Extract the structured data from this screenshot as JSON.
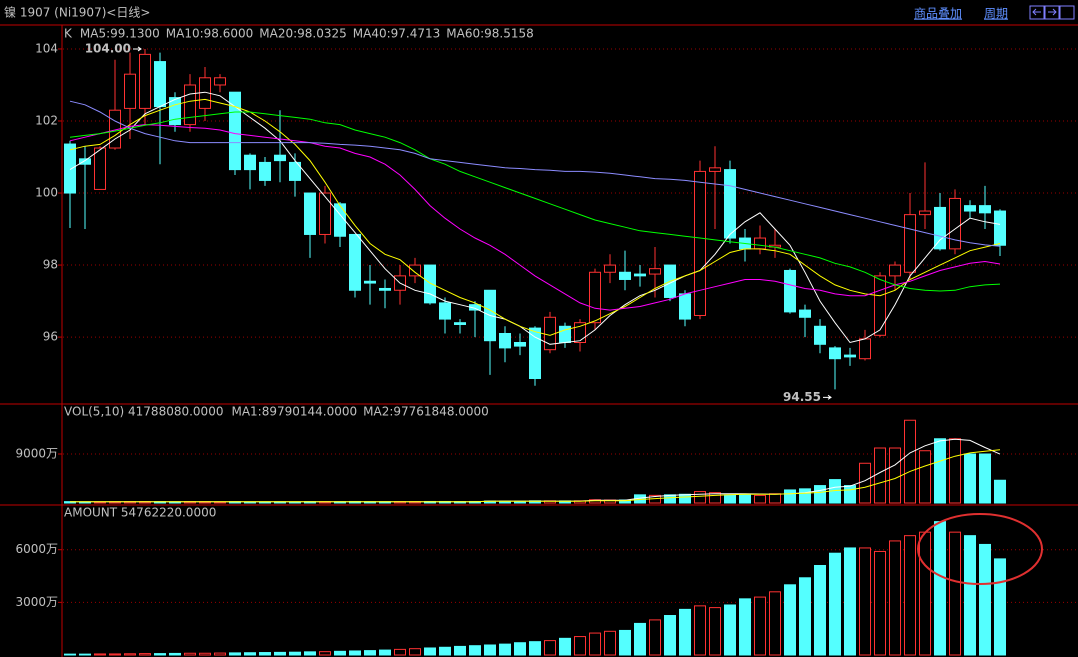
{
  "header": {
    "title": "镍  1907 (Ni1907)<日线>",
    "links": [
      "商品叠加",
      "周期"
    ]
  },
  "chart_data": [
    {
      "type": "candlestick",
      "title": "K",
      "open": [
        101.36,
        100.95,
        100.1,
        101.25,
        102.35,
        102.35,
        103.65,
        102.65,
        101.9,
        102.35,
        103.0,
        102.8,
        101.05,
        100.85,
        101.05,
        100.85,
        100.0,
        98.85,
        99.7,
        98.85,
        97.55,
        97.35,
        97.3,
        97.7,
        98.0,
        96.95,
        96.4,
        96.9,
        97.3,
        96.1,
        95.85,
        96.25,
        95.65,
        96.3,
        95.85,
        96.4,
        97.8,
        97.8,
        97.75,
        97.75,
        98.0,
        97.2,
        96.6,
        100.6,
        100.65,
        98.75,
        98.45,
        98.5,
        97.85,
        96.75,
        96.3,
        95.7,
        95.5,
        95.4,
        96.05,
        97.7,
        97.8,
        99.4,
        99.6,
        98.45,
        99.65,
        99.65,
        99.5
      ],
      "high": [
        101.45,
        101.3,
        101.3,
        103.7,
        103.9,
        104.0,
        103.9,
        102.8,
        103.3,
        103.5,
        103.3,
        102.8,
        101.1,
        101.0,
        102.3,
        101.1,
        100.0,
        100.2,
        99.75,
        98.85,
        98.0,
        97.6,
        98.0,
        98.2,
        98.0,
        97.1,
        96.5,
        97.0,
        97.3,
        96.3,
        96.1,
        96.3,
        96.7,
        96.4,
        96.5,
        97.9,
        98.3,
        98.4,
        98.0,
        98.5,
        98.0,
        97.3,
        100.9,
        101.3,
        100.9,
        99.0,
        99.1,
        99.0,
        97.9,
        96.9,
        96.5,
        95.75,
        95.7,
        96.2,
        97.8,
        98.1,
        100.0,
        100.85,
        100.0,
        100.1,
        99.8,
        100.2,
        99.55
      ],
      "low": [
        99.03,
        99.0,
        100.1,
        101.2,
        101.5,
        101.9,
        100.8,
        101.7,
        101.7,
        102.0,
        102.8,
        100.5,
        100.1,
        100.2,
        100.3,
        99.9,
        98.2,
        98.6,
        98.5,
        97.1,
        96.9,
        96.8,
        96.9,
        97.5,
        96.9,
        96.1,
        96.1,
        96.0,
        94.95,
        95.3,
        95.5,
        94.65,
        95.55,
        95.7,
        95.6,
        96.2,
        97.5,
        97.3,
        97.4,
        97.1,
        97.0,
        96.3,
        96.5,
        99.0,
        98.6,
        98.1,
        98.3,
        98.2,
        96.65,
        96.0,
        95.55,
        94.55,
        95.2,
        95.35,
        96.0,
        97.3,
        97.6,
        99.0,
        98.4,
        98.3,
        99.3,
        99.0,
        98.25
      ],
      "close": [
        100.0,
        100.8,
        101.25,
        102.3,
        103.3,
        103.85,
        102.4,
        101.9,
        103.0,
        103.2,
        103.2,
        100.65,
        100.65,
        100.35,
        100.9,
        100.35,
        98.85,
        100.0,
        98.8,
        97.3,
        97.5,
        97.3,
        97.7,
        98.0,
        96.95,
        96.5,
        96.35,
        96.75,
        95.9,
        95.7,
        95.75,
        94.85,
        96.55,
        95.85,
        96.4,
        97.8,
        98.0,
        97.6,
        97.7,
        97.9,
        97.1,
        96.5,
        100.6,
        100.7,
        98.75,
        98.45,
        98.75,
        98.55,
        96.7,
        96.55,
        95.8,
        95.4,
        95.45,
        95.95,
        97.7,
        98.0,
        99.4,
        99.5,
        98.45,
        99.85,
        99.5,
        99.45,
        98.55
      ],
      "up_color": "#ff3232",
      "down_color": "#54ffff",
      "series": [
        {
          "name": "MA5:99.1300",
          "color": "#ffffff",
          "values": [
            100.65,
            100.9,
            101.2,
            101.5,
            101.75,
            102.2,
            102.4,
            102.6,
            102.75,
            102.8,
            102.7,
            102.4,
            102.1,
            101.8,
            101.45,
            100.9,
            100.4,
            99.9,
            99.4,
            98.9,
            98.4,
            97.9,
            97.5,
            97.3,
            97.2,
            97.0,
            96.9,
            96.8,
            96.6,
            96.5,
            96.3,
            96.0,
            95.8,
            95.85,
            95.9,
            96.2,
            96.6,
            96.9,
            97.15,
            97.3,
            97.5,
            97.7,
            97.85,
            98.3,
            98.85,
            99.2,
            99.45,
            99.0,
            98.55,
            97.8,
            97.0,
            96.4,
            95.85,
            95.95,
            96.2,
            96.9,
            97.7,
            98.2,
            98.7,
            99.0,
            99.3,
            99.2,
            99.13
          ]
        },
        {
          "name": "MA10:98.6000",
          "color": "#ffff00",
          "values": [
            101.2,
            101.3,
            101.35,
            101.6,
            101.9,
            102.15,
            102.3,
            102.45,
            102.55,
            102.6,
            102.5,
            102.4,
            102.25,
            102.0,
            101.7,
            101.35,
            100.9,
            100.3,
            99.65,
            99.1,
            98.6,
            98.3,
            98.15,
            97.8,
            97.5,
            97.3,
            97.1,
            96.95,
            96.75,
            96.5,
            96.3,
            96.15,
            96.05,
            96.2,
            96.3,
            96.45,
            96.65,
            96.85,
            97.1,
            97.35,
            97.55,
            97.7,
            97.85,
            98.1,
            98.35,
            98.45,
            98.45,
            98.4,
            98.3,
            98.0,
            97.7,
            97.45,
            97.3,
            97.2,
            97.15,
            97.3,
            97.6,
            97.8,
            98.0,
            98.2,
            98.4,
            98.5,
            98.6
          ]
        },
        {
          "name": "MA20:98.0325",
          "color": "#ff00ff",
          "values": [
            101.45,
            101.55,
            101.65,
            101.75,
            101.85,
            101.9,
            101.88,
            101.85,
            101.82,
            101.8,
            101.75,
            101.65,
            101.6,
            101.55,
            101.5,
            101.45,
            101.4,
            101.3,
            101.25,
            101.1,
            101.0,
            100.8,
            100.5,
            100.1,
            99.65,
            99.3,
            99.0,
            98.75,
            98.55,
            98.3,
            98.0,
            97.7,
            97.45,
            97.2,
            96.95,
            96.8,
            96.75,
            96.8,
            96.85,
            96.95,
            97.05,
            97.2,
            97.3,
            97.4,
            97.5,
            97.6,
            97.6,
            97.55,
            97.45,
            97.35,
            97.3,
            97.2,
            97.15,
            97.15,
            97.3,
            97.45,
            97.55,
            97.7,
            97.85,
            97.95,
            98.05,
            98.1,
            98.03
          ]
        },
        {
          "name": "MA40:97.4713",
          "color": "#00ff00",
          "values": [
            101.55,
            101.6,
            101.65,
            101.72,
            101.8,
            101.88,
            101.95,
            102.05,
            102.1,
            102.15,
            102.2,
            102.25,
            102.25,
            102.2,
            102.15,
            102.1,
            102.05,
            101.95,
            101.9,
            101.75,
            101.65,
            101.55,
            101.4,
            101.2,
            100.95,
            100.8,
            100.6,
            100.45,
            100.3,
            100.15,
            100.0,
            99.85,
            99.7,
            99.55,
            99.4,
            99.25,
            99.15,
            99.05,
            98.95,
            98.9,
            98.85,
            98.8,
            98.75,
            98.7,
            98.65,
            98.6,
            98.55,
            98.5,
            98.4,
            98.3,
            98.2,
            98.05,
            97.95,
            97.8,
            97.6,
            97.45,
            97.35,
            97.3,
            97.28,
            97.3,
            97.4,
            97.45,
            97.47
          ]
        },
        {
          "name": "MA60:98.5158",
          "color": "#8c8cff",
          "values": [
            102.55,
            102.45,
            102.25,
            102.0,
            101.8,
            101.65,
            101.55,
            101.45,
            101.4,
            101.4,
            101.4,
            101.4,
            101.4,
            101.4,
            101.4,
            101.4,
            101.4,
            101.38,
            101.35,
            101.33,
            101.3,
            101.25,
            101.2,
            101.1,
            100.95,
            100.9,
            100.85,
            100.8,
            100.75,
            100.7,
            100.68,
            100.65,
            100.63,
            100.6,
            100.6,
            100.58,
            100.55,
            100.5,
            100.45,
            100.4,
            100.38,
            100.35,
            100.3,
            100.25,
            100.2,
            100.1,
            100.0,
            99.9,
            99.8,
            99.7,
            99.6,
            99.5,
            99.4,
            99.3,
            99.2,
            99.1,
            99.0,
            98.9,
            98.8,
            98.7,
            98.62,
            98.56,
            98.52
          ]
        }
      ],
      "high_label": {
        "text": "104.00",
        "value": 104.0
      },
      "low_label": {
        "text": "94.55",
        "value": 94.55
      },
      "ylim": [
        94.17,
        104.61
      ],
      "yticks": [
        96,
        98,
        100,
        102,
        104
      ],
      "grid": true
    },
    {
      "type": "bar",
      "title": "VOL(5,10) 41788080.0000",
      "values": [
        2500000,
        2000000,
        2000000,
        2200000,
        2500000,
        2500000,
        2500000,
        2200000,
        2500000,
        2300000,
        2000000,
        2500000,
        2000000,
        2000000,
        2200000,
        2000000,
        2500000,
        2300000,
        2400000,
        2800000,
        2400000,
        2400000,
        2500000,
        2400000,
        2800000,
        2800000,
        2600000,
        2800000,
        3500000,
        3200000,
        3000000,
        4000000,
        4000000,
        3800000,
        4000000,
        6000000,
        5500000,
        5500000,
        15000000,
        14000000,
        15000000,
        16000000,
        21000000,
        19000000,
        15000000,
        15000000,
        14000000,
        17000000,
        24000000,
        26000000,
        32000000,
        43000000,
        32000000,
        73000000,
        101000000,
        101000000,
        152000000,
        96000000,
        118000000,
        118000000,
        90000000,
        90000000,
        41788080
      ],
      "series": [
        {
          "name": "MA1:89790144.0000",
          "color": "#ffffff",
          "values": [
            2400000,
            2400000,
            2400000,
            2400000,
            2400000,
            2400000,
            2400000,
            2400000,
            2400000,
            2400000,
            2400000,
            2400000,
            2400000,
            2400000,
            2400000,
            2400000,
            2400000,
            2400000,
            2400000,
            2400000,
            2400000,
            2400000,
            2400000,
            2400000,
            2400000,
            2400000,
            2400000,
            2400000,
            3500000,
            3500000,
            3500000,
            3500000,
            3500000,
            3500000,
            3500000,
            5000000,
            5000000,
            5000000,
            9000000,
            12000000,
            14000000,
            15000000,
            16000000,
            17000000,
            17000000,
            17000000,
            16500000,
            16000000,
            17000000,
            19000000,
            23000000,
            29000000,
            31000000,
            41000000,
            56000000,
            70000000,
            92000000,
            105000000,
            114000000,
            117000000,
            115000000,
            102000000,
            89790144
          ]
        },
        {
          "name": "MA2:97761848.0000",
          "color": "#ffff00",
          "values": [
            2400000,
            2400000,
            2400000,
            2400000,
            2400000,
            2400000,
            2400000,
            2400000,
            2400000,
            2400000,
            2400000,
            2400000,
            2400000,
            2400000,
            2400000,
            2400000,
            2400000,
            2400000,
            2400000,
            2400000,
            2400000,
            2400000,
            2400000,
            2400000,
            2400000,
            2400000,
            2400000,
            2400000,
            3300000,
            3300000,
            3300000,
            3300000,
            3300000,
            3300000,
            3300000,
            4300000,
            4300000,
            4300000,
            6500000,
            8000000,
            9500000,
            11000000,
            12500000,
            14000000,
            15000000,
            16000000,
            16000000,
            16000000,
            17000000,
            18000000,
            19500000,
            23000000,
            24000000,
            29000000,
            37000000,
            45000000,
            58000000,
            68000000,
            77000000,
            86000000,
            92000000,
            95000000,
            97761848
          ]
        }
      ],
      "ylim": [
        0,
        180000000
      ],
      "yticks": [
        {
          "value": 90000000,
          "label": "9000万"
        }
      ],
      "grid": true
    },
    {
      "type": "bar",
      "title": "AMOUNT 54762220.0000",
      "values": [
        500000,
        500000,
        600000,
        600000,
        700000,
        800000,
        800000,
        900000,
        1000000,
        1000000,
        1100000,
        1200000,
        1300000,
        1400000,
        1500000,
        1600000,
        1800000,
        1900000,
        2100000,
        2300000,
        2500000,
        2800000,
        3200000,
        3600000,
        4000000,
        4400000,
        4900000,
        5300000,
        5700000,
        6200000,
        7000000,
        7600000,
        8200000,
        9500000,
        10500000,
        12500000,
        13500000,
        14000000,
        18000000,
        20000000,
        22500000,
        26000000,
        28000000,
        27000000,
        28500000,
        32000000,
        33000000,
        36000000,
        40000000,
        44000000,
        51000000,
        58000000,
        61000000,
        61000000,
        59000000,
        65000000,
        68000000,
        70000000,
        76000000,
        70000000,
        68000000,
        63000000,
        54762220
      ],
      "ylim": [
        0,
        84900000
      ],
      "yticks": [
        {
          "value": 30000000,
          "label": "3000万"
        },
        {
          "value": 60000000,
          "label": "6000万"
        }
      ],
      "grid": true
    }
  ]
}
